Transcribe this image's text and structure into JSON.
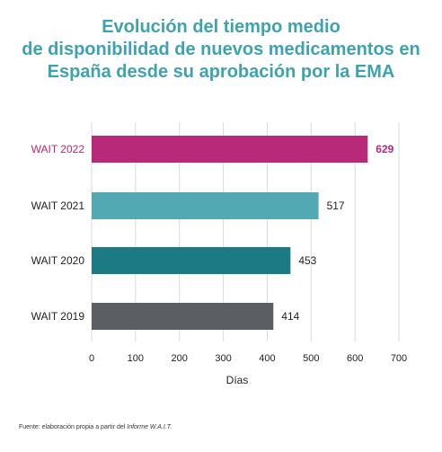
{
  "title_lines": [
    "Evolución del tiempo medio",
    "de disponibilidad de nuevos medicamentos en",
    "España desde su aprobación por la EMA"
  ],
  "source": {
    "prefix": "Fuente: elaboración propia a partir del ",
    "italic": "Informe W.A.I.T."
  },
  "colors": {
    "title": "#3fa2b0",
    "highlight_label": "#b8297a"
  },
  "chart_data": {
    "type": "bar",
    "orientation": "horizontal",
    "categories": [
      "WAIT 2022",
      "WAIT 2021",
      "WAIT 2020",
      "WAIT 2019"
    ],
    "values": [
      629,
      517,
      453,
      414
    ],
    "value_labels": [
      "629",
      "517",
      "453",
      "414"
    ],
    "colors": [
      "#b8297a",
      "#52a8b3",
      "#1b7a83",
      "#5b5f63"
    ],
    "highlight_category": "WAIT 2022",
    "xlabel": "Días",
    "xlim": [
      0,
      700
    ],
    "xticks": [
      0,
      100,
      200,
      300,
      400,
      500,
      600,
      700
    ],
    "grid": true
  }
}
